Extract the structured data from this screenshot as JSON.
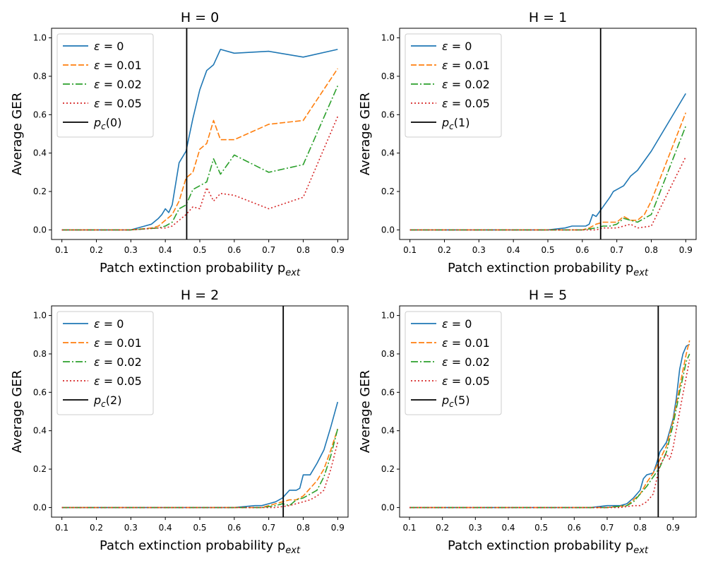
{
  "figure": {
    "ylabel": "Average GER",
    "xlabel_main": "Patch extinction probability p",
    "xlabel_sub": "ext"
  },
  "styles": {
    "colors": {
      "eps0": "#1f77b4",
      "eps001": "#ff7f0e",
      "eps002": "#2ca02c",
      "eps005": "#d62728",
      "pc": "#000000"
    },
    "dashes": {
      "eps0": "",
      "eps001": "8,3",
      "eps002": "10,3,2,3",
      "eps005": "2,3",
      "pc": ""
    }
  },
  "chart_data": [
    {
      "type": "line",
      "title": "H = 0",
      "xlabel": "Patch extinction probability p_ext",
      "ylabel": "Average GER",
      "xlim": [
        0.07,
        0.93
      ],
      "ylim": [
        -0.05,
        1.05
      ],
      "xticks": [
        "0.1",
        "0.2",
        "0.3",
        "0.4",
        "0.5",
        "0.6",
        "0.7",
        "0.8",
        "0.9"
      ],
      "yticks": [
        "0.0",
        "0.2",
        "0.4",
        "0.6",
        "0.8",
        "1.0"
      ],
      "legend_position": "top-left",
      "legend": [
        {
          "symbol": "ε",
          "text": " = 0",
          "style": "eps0"
        },
        {
          "symbol": "ε",
          "text": " = 0.01",
          "style": "eps001"
        },
        {
          "symbol": "ε",
          "text": " = 0.02",
          "style": "eps002"
        },
        {
          "symbol": "ε",
          "text": " = 0.05",
          "style": "eps005"
        },
        {
          "symbol": "p",
          "sub": "c",
          "text": "(0)",
          "style": "pc"
        }
      ],
      "vline": 0.462,
      "series": [
        {
          "style": "eps0",
          "x": [
            0.1,
            0.3,
            0.34,
            0.36,
            0.38,
            0.39,
            0.4,
            0.41,
            0.42,
            0.44,
            0.46,
            0.48,
            0.5,
            0.52,
            0.54,
            0.56,
            0.6,
            0.7,
            0.8,
            0.9
          ],
          "y": [
            0,
            0,
            0.02,
            0.03,
            0.06,
            0.08,
            0.11,
            0.09,
            0.13,
            0.35,
            0.41,
            0.58,
            0.73,
            0.83,
            0.86,
            0.94,
            0.92,
            0.93,
            0.9,
            0.94
          ]
        },
        {
          "style": "eps001",
          "x": [
            0.1,
            0.3,
            0.36,
            0.38,
            0.4,
            0.42,
            0.44,
            0.46,
            0.48,
            0.5,
            0.52,
            0.54,
            0.56,
            0.6,
            0.7,
            0.8,
            0.9
          ],
          "y": [
            0,
            0,
            0.01,
            0.02,
            0.05,
            0.08,
            0.15,
            0.27,
            0.3,
            0.42,
            0.45,
            0.57,
            0.47,
            0.47,
            0.55,
            0.57,
            0.84
          ]
        },
        {
          "style": "eps002",
          "x": [
            0.1,
            0.3,
            0.38,
            0.4,
            0.42,
            0.44,
            0.46,
            0.48,
            0.5,
            0.52,
            0.54,
            0.56,
            0.6,
            0.7,
            0.8,
            0.9
          ],
          "y": [
            0,
            0,
            0.01,
            0.02,
            0.04,
            0.11,
            0.13,
            0.21,
            0.23,
            0.25,
            0.37,
            0.29,
            0.39,
            0.3,
            0.34,
            0.75
          ]
        },
        {
          "style": "eps005",
          "x": [
            0.1,
            0.3,
            0.38,
            0.4,
            0.42,
            0.44,
            0.46,
            0.48,
            0.5,
            0.52,
            0.54,
            0.56,
            0.6,
            0.7,
            0.8,
            0.9
          ],
          "y": [
            0,
            0,
            0.01,
            0.01,
            0.02,
            0.05,
            0.08,
            0.12,
            0.11,
            0.22,
            0.15,
            0.19,
            0.18,
            0.11,
            0.17,
            0.59
          ]
        }
      ]
    },
    {
      "type": "line",
      "title": "H = 1",
      "xlabel": "Patch extinction probability p_ext",
      "ylabel": "Average GER",
      "xlim": [
        0.07,
        0.93
      ],
      "ylim": [
        -0.05,
        1.05
      ],
      "xticks": [
        "0.1",
        "0.2",
        "0.3",
        "0.4",
        "0.5",
        "0.6",
        "0.7",
        "0.8",
        "0.9"
      ],
      "yticks": [
        "0.0",
        "0.2",
        "0.4",
        "0.6",
        "0.8",
        "1.0"
      ],
      "legend_position": "top-left",
      "legend": [
        {
          "symbol": "ε",
          "text": " = 0",
          "style": "eps0"
        },
        {
          "symbol": "ε",
          "text": " = 0.01",
          "style": "eps001"
        },
        {
          "symbol": "ε",
          "text": " = 0.02",
          "style": "eps002"
        },
        {
          "symbol": "ε",
          "text": " = 0.05",
          "style": "eps005"
        },
        {
          "symbol": "p",
          "sub": "c",
          "text": "(1)",
          "style": "pc"
        }
      ],
      "vline": 0.653,
      "series": [
        {
          "style": "eps0",
          "x": [
            0.1,
            0.5,
            0.55,
            0.57,
            0.59,
            0.6,
            0.61,
            0.62,
            0.63,
            0.64,
            0.66,
            0.68,
            0.69,
            0.7,
            0.72,
            0.74,
            0.76,
            0.8,
            0.9
          ],
          "y": [
            0,
            0,
            0.01,
            0.02,
            0.02,
            0.02,
            0.02,
            0.03,
            0.08,
            0.07,
            0.12,
            0.17,
            0.2,
            0.21,
            0.23,
            0.28,
            0.31,
            0.41,
            0.71
          ]
        },
        {
          "style": "eps001",
          "x": [
            0.1,
            0.6,
            0.62,
            0.64,
            0.66,
            0.68,
            0.7,
            0.72,
            0.74,
            0.76,
            0.78,
            0.8,
            0.9
          ],
          "y": [
            0,
            0,
            0.01,
            0.03,
            0.04,
            0.04,
            0.04,
            0.07,
            0.05,
            0.05,
            0.08,
            0.15,
            0.61
          ]
        },
        {
          "style": "eps002",
          "x": [
            0.1,
            0.6,
            0.64,
            0.66,
            0.68,
            0.7,
            0.72,
            0.74,
            0.76,
            0.8,
            0.9
          ],
          "y": [
            0,
            0,
            0.01,
            0.02,
            0.02,
            0.03,
            0.06,
            0.05,
            0.04,
            0.08,
            0.54
          ]
        },
        {
          "style": "eps005",
          "x": [
            0.1,
            0.64,
            0.66,
            0.68,
            0.7,
            0.72,
            0.74,
            0.76,
            0.8,
            0.9
          ],
          "y": [
            0,
            0,
            0.01,
            0.01,
            0.01,
            0.02,
            0.03,
            0.01,
            0.02,
            0.38
          ]
        }
      ]
    },
    {
      "type": "line",
      "title": "H = 2",
      "xlabel": "Patch extinction probability p_ext",
      "ylabel": "Average GER",
      "xlim": [
        0.07,
        0.93
      ],
      "ylim": [
        -0.05,
        1.05
      ],
      "xticks": [
        "0.1",
        "0.2",
        "0.3",
        "0.4",
        "0.5",
        "0.6",
        "0.7",
        "0.8",
        "0.9"
      ],
      "yticks": [
        "0.0",
        "0.2",
        "0.4",
        "0.6",
        "0.8",
        "1.0"
      ],
      "legend_position": "top-left",
      "legend": [
        {
          "symbol": "ε",
          "text": " = 0",
          "style": "eps0"
        },
        {
          "symbol": "ε",
          "text": " = 0.01",
          "style": "eps001"
        },
        {
          "symbol": "ε",
          "text": " = 0.02",
          "style": "eps002"
        },
        {
          "symbol": "ε",
          "text": " = 0.05",
          "style": "eps005"
        },
        {
          "symbol": "p",
          "sub": "c",
          "text": "(2)",
          "style": "pc"
        }
      ],
      "vline": 0.742,
      "series": [
        {
          "style": "eps0",
          "x": [
            0.1,
            0.6,
            0.66,
            0.68,
            0.7,
            0.72,
            0.74,
            0.76,
            0.78,
            0.79,
            0.8,
            0.82,
            0.84,
            0.86,
            0.88,
            0.9
          ],
          "y": [
            0,
            0,
            0.01,
            0.01,
            0.02,
            0.03,
            0.05,
            0.09,
            0.09,
            0.1,
            0.17,
            0.17,
            0.23,
            0.3,
            0.42,
            0.55
          ]
        },
        {
          "style": "eps001",
          "x": [
            0.1,
            0.68,
            0.7,
            0.72,
            0.74,
            0.76,
            0.78,
            0.8,
            0.82,
            0.84,
            0.86,
            0.88,
            0.9
          ],
          "y": [
            0,
            0,
            0.01,
            0.02,
            0.03,
            0.04,
            0.04,
            0.06,
            0.1,
            0.14,
            0.2,
            0.3,
            0.41
          ]
        },
        {
          "style": "eps002",
          "x": [
            0.1,
            0.68,
            0.72,
            0.74,
            0.76,
            0.78,
            0.8,
            0.82,
            0.84,
            0.86,
            0.88,
            0.9
          ],
          "y": [
            0,
            0,
            0.01,
            0.02,
            0.01,
            0.04,
            0.05,
            0.07,
            0.09,
            0.16,
            0.27,
            0.41
          ]
        },
        {
          "style": "eps005",
          "x": [
            0.1,
            0.72,
            0.76,
            0.78,
            0.8,
            0.82,
            0.84,
            0.86,
            0.88,
            0.9
          ],
          "y": [
            0,
            0,
            0.01,
            0.02,
            0.03,
            0.04,
            0.06,
            0.09,
            0.2,
            0.34
          ]
        }
      ]
    },
    {
      "type": "line",
      "title": "H = 5",
      "xlabel": "Patch extinction probability p_ext",
      "ylabel": "Average GER",
      "xlim": [
        0.07,
        0.97
      ],
      "ylim": [
        -0.05,
        1.05
      ],
      "xticks": [
        "0.1",
        "0.2",
        "0.3",
        "0.4",
        "0.5",
        "0.6",
        "0.7",
        "0.8",
        "0.9"
      ],
      "yticks": [
        "0.0",
        "0.2",
        "0.4",
        "0.6",
        "0.8",
        "1.0"
      ],
      "legend_position": "top-left",
      "legend": [
        {
          "symbol": "ε",
          "text": " = 0",
          "style": "eps0"
        },
        {
          "symbol": "ε",
          "text": " = 0.01",
          "style": "eps001"
        },
        {
          "symbol": "ε",
          "text": " = 0.02",
          "style": "eps002"
        },
        {
          "symbol": "ε",
          "text": " = 0.05",
          "style": "eps005"
        },
        {
          "symbol": "p",
          "sub": "c",
          "text": "(5)",
          "style": "pc"
        }
      ],
      "vline": 0.855,
      "series": [
        {
          "style": "eps0",
          "x": [
            0.1,
            0.65,
            0.7,
            0.74,
            0.76,
            0.78,
            0.8,
            0.81,
            0.82,
            0.84,
            0.85,
            0.86,
            0.88,
            0.89,
            0.9,
            0.91,
            0.92,
            0.93,
            0.94,
            0.95
          ],
          "y": [
            0,
            0,
            0.01,
            0.01,
            0.02,
            0.05,
            0.09,
            0.15,
            0.17,
            0.18,
            0.23,
            0.29,
            0.34,
            0.4,
            0.46,
            0.57,
            0.72,
            0.8,
            0.84,
            0.85
          ]
        },
        {
          "style": "eps001",
          "x": [
            0.1,
            0.7,
            0.76,
            0.78,
            0.8,
            0.82,
            0.84,
            0.86,
            0.88,
            0.9,
            0.92,
            0.94,
            0.95
          ],
          "y": [
            0,
            0,
            0.01,
            0.04,
            0.07,
            0.13,
            0.18,
            0.25,
            0.32,
            0.45,
            0.63,
            0.8,
            0.87
          ]
        },
        {
          "style": "eps002",
          "x": [
            0.1,
            0.7,
            0.76,
            0.78,
            0.8,
            0.82,
            0.84,
            0.86,
            0.88,
            0.9,
            0.92,
            0.94,
            0.95
          ],
          "y": [
            0,
            0,
            0.01,
            0.03,
            0.07,
            0.11,
            0.16,
            0.21,
            0.29,
            0.43,
            0.6,
            0.76,
            0.8
          ]
        },
        {
          "style": "eps005",
          "x": [
            0.1,
            0.74,
            0.78,
            0.8,
            0.82,
            0.84,
            0.86,
            0.88,
            0.89,
            0.9,
            0.92,
            0.94,
            0.95
          ],
          "y": [
            0,
            0,
            0.01,
            0.01,
            0.03,
            0.07,
            0.22,
            0.28,
            0.25,
            0.31,
            0.5,
            0.68,
            0.77
          ]
        }
      ]
    }
  ]
}
